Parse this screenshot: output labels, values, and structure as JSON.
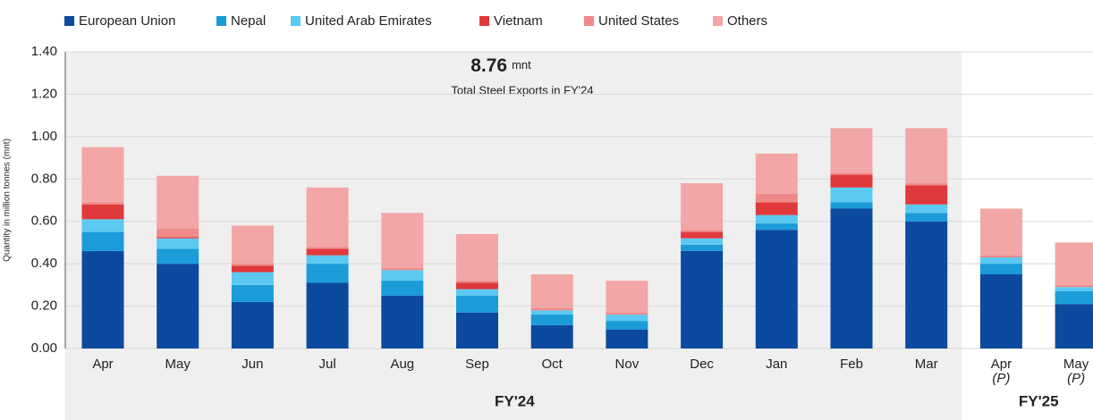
{
  "chart_data": {
    "type": "stacked_bar",
    "annotation": {
      "value": "8.76",
      "unit": "mnt",
      "text": "Total Steel Exports in FY'24"
    },
    "y_label": "Quantity in million tonnes (mnt)",
    "categories": [
      "Apr",
      "May",
      "Jun",
      "Jul",
      "Aug",
      "Sep",
      "Oct",
      "Nov",
      "Dec",
      "Jan",
      "Feb",
      "Mar",
      "Apr",
      "May"
    ],
    "category_sublabels": [
      null,
      null,
      null,
      null,
      null,
      null,
      null,
      null,
      null,
      null,
      null,
      null,
      "(P)",
      "(P)"
    ],
    "fiscal_years": [
      "FY'24",
      "FY'24",
      "FY'24",
      "FY'24",
      "FY'24",
      "FY'24",
      "FY'24",
      "FY'24",
      "FY'24",
      "FY'24",
      "FY'24",
      "FY'24",
      "FY'25",
      "FY'25"
    ],
    "series": [
      {
        "name": "European Union",
        "color": "#0b4a9e",
        "values": [
          0.46,
          0.4,
          0.22,
          0.31,
          0.25,
          0.17,
          0.11,
          0.09,
          0.46,
          0.56,
          0.66,
          0.6,
          0.35,
          0.21
        ]
      },
      {
        "name": "Nepal",
        "color": "#1b9bd7",
        "values": [
          0.09,
          0.07,
          0.08,
          0.09,
          0.07,
          0.08,
          0.05,
          0.04,
          0.03,
          0.03,
          0.03,
          0.04,
          0.05,
          0.06
        ]
      },
      {
        "name": "United Arab Emirates",
        "color": "#5cc9f1",
        "values": [
          0.06,
          0.05,
          0.06,
          0.04,
          0.05,
          0.03,
          0.02,
          0.03,
          0.03,
          0.04,
          0.07,
          0.04,
          0.03,
          0.02
        ]
      },
      {
        "name": "Vietnam",
        "color": "#e0393b",
        "values": [
          0.07,
          0.005,
          0.03,
          0.03,
          0,
          0.03,
          0,
          0,
          0.03,
          0.06,
          0.06,
          0.09,
          0,
          0
        ]
      },
      {
        "name": "United States",
        "color": "#ef8a89",
        "values": [
          0.01,
          0.04,
          0.01,
          0.01,
          0.01,
          0.01,
          0.01,
          0.01,
          0.01,
          0.04,
          0.01,
          0.01,
          0.01,
          0.01
        ]
      },
      {
        "name": "Others",
        "color": "#f2a6a5",
        "values": [
          0.26,
          0.25,
          0.18,
          0.28,
          0.26,
          0.22,
          0.16,
          0.15,
          0.22,
          0.19,
          0.21,
          0.26,
          0.22,
          0.2
        ]
      }
    ],
    "ylim": [
      0,
      1.4
    ],
    "yticks": [
      {
        "value": 0,
        "label": "0.00"
      },
      {
        "value": 0.2,
        "label": "0.20"
      },
      {
        "value": 0.4,
        "label": "0.40"
      },
      {
        "value": 0.6,
        "label": "0.60"
      },
      {
        "value": 0.8,
        "label": "0.80"
      },
      {
        "value": 1.0,
        "label": "1.00"
      },
      {
        "value": 1.2,
        "label": "1.20"
      },
      {
        "value": 1.4,
        "label": "1.40"
      }
    ],
    "grid": true
  }
}
